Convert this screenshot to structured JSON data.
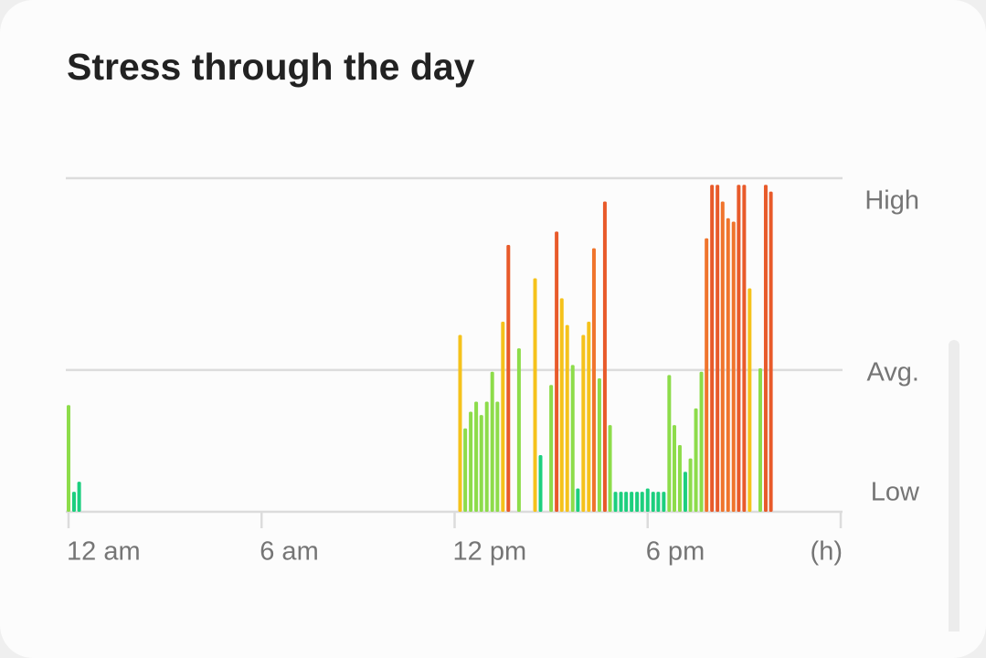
{
  "chart_data": {
    "type": "bar",
    "title": "Stress through the day",
    "x_label": "(h)",
    "xlim": [
      0,
      24
    ],
    "xticks": [
      {
        "value": 0,
        "label": "12 am"
      },
      {
        "value": 6,
        "label": "6 am"
      },
      {
        "value": 12,
        "label": "12 pm"
      },
      {
        "value": 18,
        "label": "6 pm"
      }
    ],
    "ylim": [
      0,
      100
    ],
    "yticks": [
      {
        "value": 0,
        "label": "Low"
      },
      {
        "value": 42.5,
        "label": "Avg."
      },
      {
        "value": 100,
        "label": "High"
      }
    ],
    "grid": true,
    "x": [
      0,
      0.17,
      0.33,
      12.17,
      12.33,
      12.5,
      12.67,
      12.83,
      13,
      13.17,
      13.33,
      13.5,
      13.67,
      14,
      14.5,
      14.67,
      15,
      15.17,
      15.33,
      15.5,
      15.67,
      15.83,
      16,
      16.17,
      16.33,
      16.5,
      16.67,
      16.83,
      17,
      17.17,
      17.33,
      17.5,
      17.67,
      17.83,
      18,
      18.17,
      18.33,
      18.5,
      18.67,
      18.83,
      19,
      19.17,
      19.33,
      19.5,
      19.67,
      19.83,
      20,
      20.17,
      20.33,
      20.5,
      20.67,
      20.83,
      21,
      21.17,
      21.5,
      21.67,
      21.83
    ],
    "values": [
      32,
      6,
      9,
      53,
      25,
      30,
      33,
      29,
      33,
      42,
      33,
      57,
      80,
      49,
      70,
      17,
      38,
      84,
      64,
      56,
      44,
      7,
      53,
      57,
      79,
      40,
      93,
      26,
      6,
      6,
      6,
      6,
      6,
      6,
      7,
      6,
      6,
      6,
      41,
      26,
      20,
      12,
      16,
      31,
      42,
      82,
      98,
      98,
      93,
      88,
      87,
      98,
      98,
      67,
      43,
      98,
      96
    ],
    "colors": [
      "#8ddc4a",
      "#1ccf7e",
      "#1ccf7e",
      "#f5c21b",
      "#8ddc4a",
      "#8ddc4a",
      "#8ddc4a",
      "#8ddc4a",
      "#8ddc4a",
      "#8ddc4a",
      "#8ddc4a",
      "#f5c21b",
      "#e85a2a",
      "#8ddc4a",
      "#f5c21b",
      "#1ccf7e",
      "#8ddc4a",
      "#e85a2a",
      "#f5c21b",
      "#f5c21b",
      "#8ddc4a",
      "#1ccf7e",
      "#f5c21b",
      "#f5c21b",
      "#f0742c",
      "#8ddc4a",
      "#e85a2a",
      "#8ddc4a",
      "#1ccf7e",
      "#1ccf7e",
      "#1ccf7e",
      "#1ccf7e",
      "#1ccf7e",
      "#1ccf7e",
      "#1ccf7e",
      "#1ccf7e",
      "#1ccf7e",
      "#1ccf7e",
      "#8ddc4a",
      "#8ddc4a",
      "#8ddc4a",
      "#1ccf7e",
      "#8ddc4a",
      "#8ddc4a",
      "#8ddc4a",
      "#f0742c",
      "#e85a2a",
      "#e85a2a",
      "#f0742c",
      "#f0742c",
      "#f0742c",
      "#e85a2a",
      "#e85a2a",
      "#f5c21b",
      "#8ddc4a",
      "#e85a2a",
      "#e85a2a"
    ]
  }
}
